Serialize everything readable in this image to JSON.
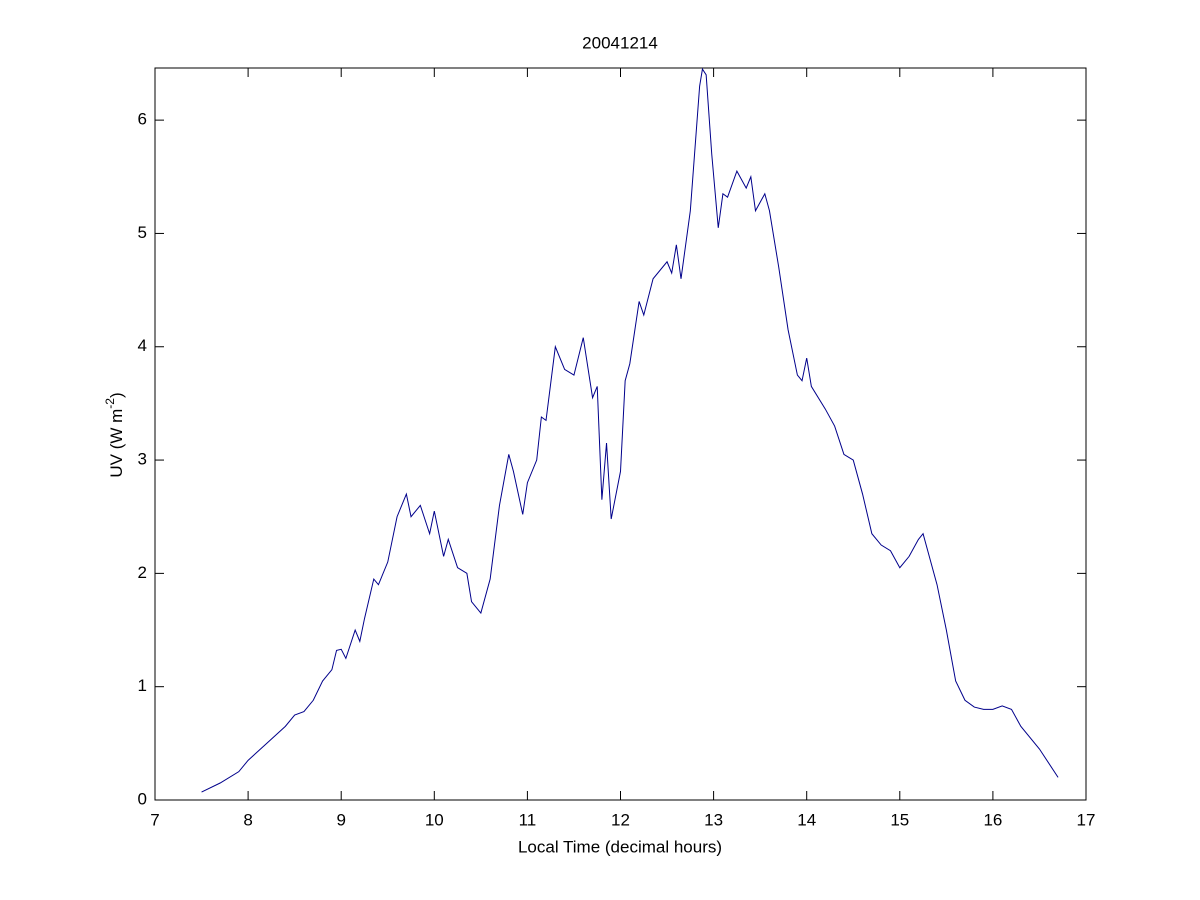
{
  "chart_data": {
    "type": "line",
    "title": "20041214",
    "xlabel": "Local Time (decimal hours)",
    "ylabel": [
      "UV (W m",
      "-2",
      ")"
    ],
    "xlim": [
      7,
      17
    ],
    "xticks": [
      7,
      8,
      9,
      10,
      11,
      12,
      13,
      14,
      15,
      16,
      17
    ],
    "ylim": [
      0,
      6.46
    ],
    "yticks": [
      0,
      1,
      2,
      3,
      4,
      5,
      6
    ],
    "grid": false,
    "series": [
      {
        "color": "#00008b",
        "x": [
          7.5,
          7.7,
          7.9,
          8.0,
          8.2,
          8.4,
          8.5,
          8.6,
          8.7,
          8.8,
          8.9,
          8.95,
          9.0,
          9.05,
          9.15,
          9.2,
          9.25,
          9.35,
          9.4,
          9.5,
          9.6,
          9.7,
          9.75,
          9.85,
          9.95,
          10.0,
          10.1,
          10.15,
          10.25,
          10.35,
          10.4,
          10.5,
          10.6,
          10.7,
          10.8,
          10.85,
          10.95,
          11.0,
          11.1,
          11.15,
          11.2,
          11.3,
          11.4,
          11.5,
          11.6,
          11.7,
          11.75,
          11.8,
          11.85,
          11.9,
          12.0,
          12.05,
          12.1,
          12.2,
          12.25,
          12.35,
          12.5,
          12.55,
          12.6,
          12.65,
          12.75,
          12.85,
          12.88,
          12.92,
          12.98,
          13.05,
          13.1,
          13.15,
          13.25,
          13.35,
          13.4,
          13.45,
          13.55,
          13.6,
          13.7,
          13.8,
          13.9,
          13.95,
          14.0,
          14.05,
          14.2,
          14.3,
          14.4,
          14.5,
          14.6,
          14.7,
          14.8,
          14.9,
          15.0,
          15.1,
          15.2,
          15.25,
          15.3,
          15.4,
          15.5,
          15.6,
          15.7,
          15.8,
          15.9,
          16.0,
          16.1,
          16.2,
          16.3,
          16.5,
          16.7
        ],
        "values": [
          0.07,
          0.15,
          0.25,
          0.35,
          0.5,
          0.65,
          0.75,
          0.78,
          0.88,
          1.05,
          1.15,
          1.32,
          1.33,
          1.25,
          1.5,
          1.4,
          1.6,
          1.95,
          1.9,
          2.1,
          2.5,
          2.7,
          2.5,
          2.6,
          2.35,
          2.55,
          2.15,
          2.3,
          2.05,
          2.0,
          1.75,
          1.65,
          1.95,
          2.6,
          3.05,
          2.9,
          2.52,
          2.8,
          3.0,
          3.38,
          3.35,
          4.0,
          3.8,
          3.75,
          4.08,
          3.55,
          3.65,
          2.65,
          3.15,
          2.48,
          2.9,
          3.7,
          3.85,
          4.4,
          4.28,
          4.6,
          4.75,
          4.65,
          4.9,
          4.6,
          5.2,
          6.3,
          6.45,
          6.4,
          5.7,
          5.05,
          5.35,
          5.32,
          5.55,
          5.4,
          5.5,
          5.2,
          5.35,
          5.2,
          4.7,
          4.15,
          3.75,
          3.7,
          3.9,
          3.65,
          3.45,
          3.3,
          3.05,
          3.0,
          2.7,
          2.35,
          2.25,
          2.2,
          2.05,
          2.15,
          2.3,
          2.35,
          2.2,
          1.9,
          1.5,
          1.05,
          0.88,
          0.82,
          0.8,
          0.8,
          0.83,
          0.8,
          0.65,
          0.45,
          0.2
        ]
      }
    ]
  }
}
